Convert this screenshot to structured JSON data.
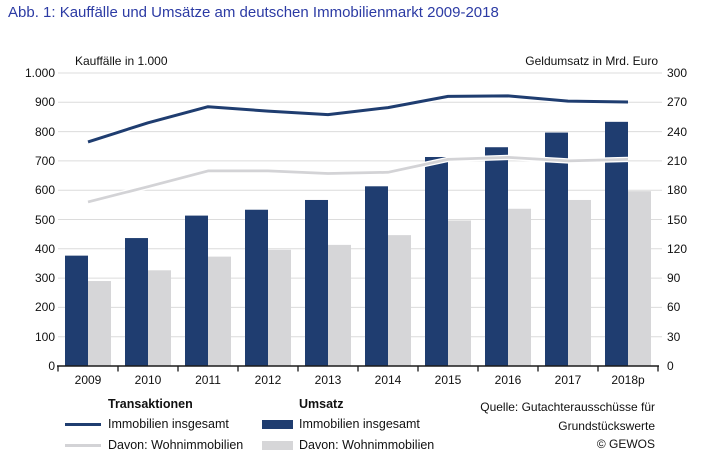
{
  "title": "Abb. 1: Kauffälle und Umsätze am deutschen Immobilienmarkt 2009-2018",
  "colors": {
    "title_blue": "#2c3ba4",
    "dark_navy": "#1f3d70",
    "light_gray_series": "#d5d5d8",
    "gridline": "#dcdcdc",
    "axis_black": "#1a1a1a",
    "background": "#ffffff"
  },
  "chart_data": {
    "type": "bar",
    "subtype": "dual-axis combo: grouped bars (right axis) + lines (left axis)",
    "categories": [
      "2009",
      "2010",
      "2011",
      "2012",
      "2013",
      "2014",
      "2015",
      "2016",
      "2017",
      "2018p"
    ],
    "left_axis": {
      "label": "Kauffälle in 1.000",
      "min": 0,
      "max": 1000,
      "step": 100,
      "tick_labels": [
        "1.000",
        "900",
        "800",
        "700",
        "600",
        "500",
        "400",
        "300",
        "200",
        "100",
        "0"
      ]
    },
    "right_axis": {
      "label": "Geldumsatz in Mrd. Euro",
      "min": 0,
      "max": 300,
      "step": 30,
      "tick_labels": [
        "300",
        "270",
        "240",
        "210",
        "180",
        "150",
        "120",
        "90",
        "60",
        "30",
        "0"
      ]
    },
    "series": [
      {
        "name": "Transaktionen: Immobilien insgesamt",
        "type": "line",
        "axis": "left",
        "color": "#1f3d70",
        "values": [
          765,
          830,
          885,
          870,
          858,
          882,
          920,
          922,
          904,
          901
        ]
      },
      {
        "name": "Transaktionen: Davon: Wohnimmobilien",
        "type": "line",
        "axis": "left",
        "color": "#d3d3d6",
        "values": [
          560,
          612,
          666,
          666,
          657,
          661,
          705,
          712,
          700,
          705
        ]
      },
      {
        "name": "Umsatz: Immobilien insgesamt",
        "type": "bar",
        "axis": "right",
        "color": "#1f3d70",
        "values": [
          113,
          131,
          154,
          160,
          170,
          184,
          214,
          224,
          239,
          250
        ]
      },
      {
        "name": "Umsatz: Davon: Wohnimmobilien",
        "type": "bar",
        "axis": "right",
        "color": "#d6d6d8",
        "values": [
          87,
          98,
          112,
          119,
          124,
          134,
          149,
          161,
          170,
          179
        ]
      }
    ],
    "grid": "horizontal gridlines on",
    "legend_position": "bottom-left"
  },
  "axes": {
    "left_caption": "Kauffälle in 1.000",
    "right_caption": "Geldumsatz in Mrd. Euro"
  },
  "legend": {
    "col1_header": "Transaktionen",
    "col2_header": "Umsatz",
    "items": [
      {
        "swatch": "line-dark-navy",
        "label": "Immobilien insgesamt"
      },
      {
        "swatch": "line-light-gray",
        "label": "Davon: Wohnimmobilien"
      },
      {
        "swatch": "bar-dark-navy",
        "label": "Immobilien insgesamt"
      },
      {
        "swatch": "bar-light-gray",
        "label": "Davon: Wohnimmobilien"
      }
    ]
  },
  "source": {
    "lines": [
      "Quelle: Gutachterausschüsse für",
      "Grundstückswerte",
      "© GEWOS"
    ]
  }
}
